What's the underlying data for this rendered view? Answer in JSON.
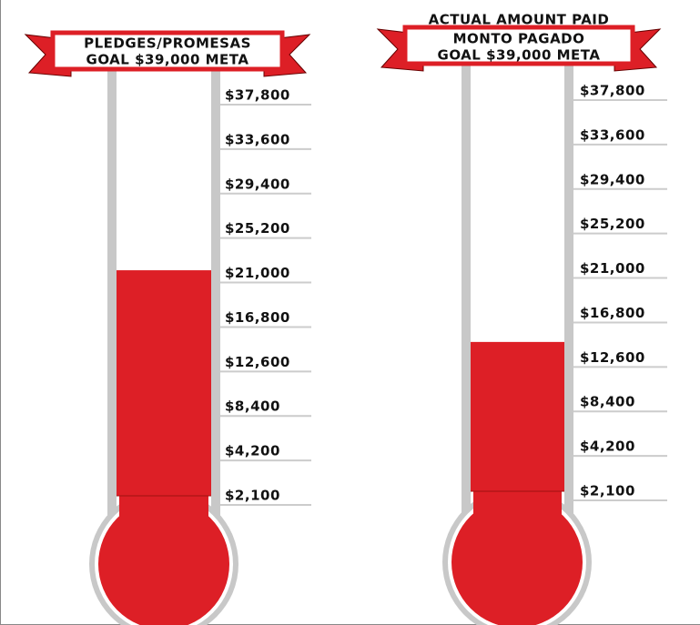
{
  "chart_data": [
    {
      "type": "thermometer",
      "title_lines": [
        "PLEDGES/PROMESAS",
        "GOAL $39,000 META"
      ],
      "value": 21300,
      "color": "#dd1f26",
      "ylim": [
        2100,
        37800
      ],
      "yticks": [
        {
          "value": 37800,
          "label": "$37,800"
        },
        {
          "value": 33600,
          "label": "$33,600"
        },
        {
          "value": 29400,
          "label": "$29,400"
        },
        {
          "value": 25200,
          "label": "$25,200"
        },
        {
          "value": 21000,
          "label": "$21,000"
        },
        {
          "value": 16800,
          "label": "$16,800"
        },
        {
          "value": 12600,
          "label": "$12,600"
        },
        {
          "value": 8400,
          "label": "$8,400"
        },
        {
          "value": 4200,
          "label": "$4,200"
        },
        {
          "value": 2100,
          "label": "$2,100"
        }
      ]
    },
    {
      "type": "thermometer",
      "title_lines": [
        "ACTUAL AMOUNT PAID",
        "MONTO PAGADO",
        "GOAL $39,000 META"
      ],
      "value": 14100,
      "color": "#dd1f26",
      "ylim": [
        2100,
        37800
      ],
      "yticks": [
        {
          "value": 37800,
          "label": "$37,800"
        },
        {
          "value": 33600,
          "label": "$33,600"
        },
        {
          "value": 29400,
          "label": "$29,400"
        },
        {
          "value": 25200,
          "label": "$25,200"
        },
        {
          "value": 21000,
          "label": "$21,000"
        },
        {
          "value": 16800,
          "label": "$16,800"
        },
        {
          "value": 12600,
          "label": "$12,600"
        },
        {
          "value": 8400,
          "label": "$8,400"
        },
        {
          "value": 4200,
          "label": "$4,200"
        },
        {
          "value": 2100,
          "label": "$2,100"
        }
      ]
    }
  ]
}
